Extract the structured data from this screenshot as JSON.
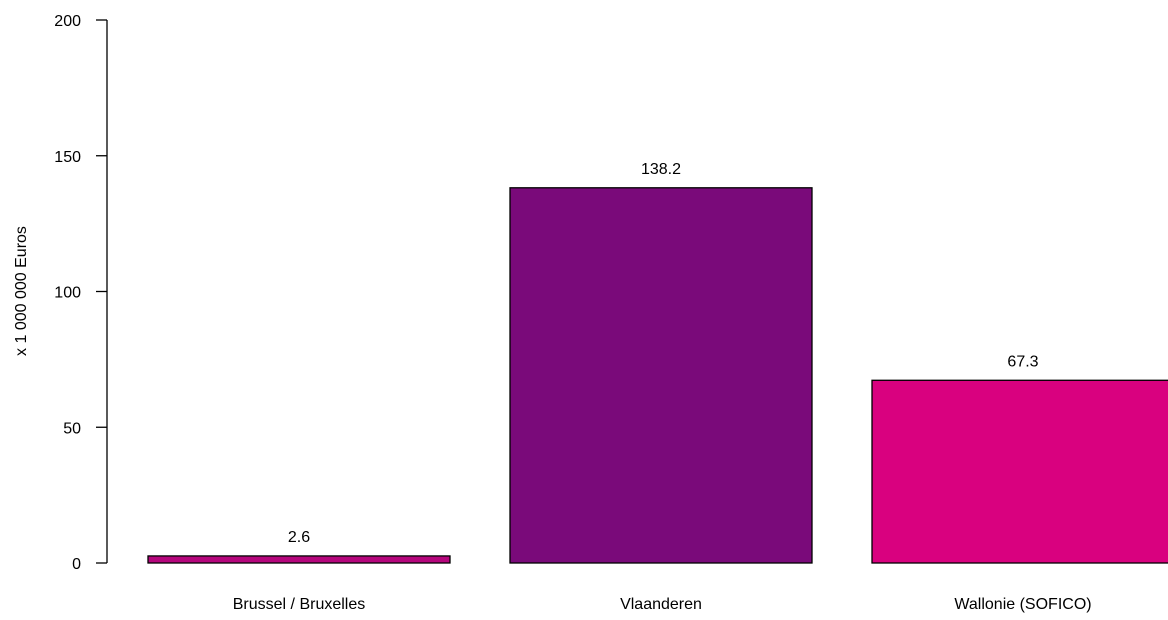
{
  "chart_data": {
    "type": "bar",
    "categories": [
      "Brussel / Bruxelles",
      "Vlaanderen",
      "Wallonie (SOFICO)"
    ],
    "values": [
      2.6,
      138.2,
      67.3
    ],
    "value_labels": [
      "2.6",
      "138.2",
      "67.3"
    ],
    "colors": [
      "#b5057c",
      "#7a0a7a",
      "#d9017f"
    ],
    "title": "",
    "xlabel": "",
    "ylabel": "x 1 000 000 Euros",
    "ylim": [
      0,
      200
    ],
    "yticks": [
      0,
      50,
      100,
      150,
      200
    ],
    "grid": false,
    "legend": "none"
  }
}
